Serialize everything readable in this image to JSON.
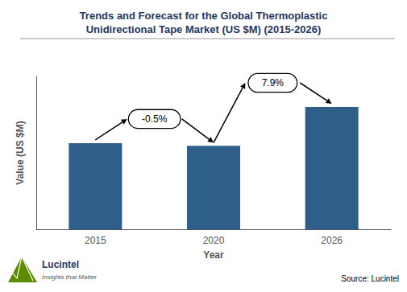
{
  "chart_data": {
    "type": "bar",
    "title": "Trends and Forecast for the Global Thermoplastic\nUnidirectional Tape Market (US $M) (2015-2026)",
    "xlabel": "Year",
    "ylabel": "Value (US $M)",
    "categories": [
      "2015",
      "2020",
      "2026"
    ],
    "values": [
      0.62,
      0.6,
      0.88
    ],
    "color": "#2E5F8A",
    "ylim": [
      0,
      1.1
    ],
    "yticks": [],
    "tick_labels": "x",
    "grid": false,
    "annotations": [
      "-0.5%",
      "7.9%"
    ],
    "source": "Source: Lucintel",
    "logo": [
      "Lucintel",
      "Insights that Matter"
    ]
  }
}
